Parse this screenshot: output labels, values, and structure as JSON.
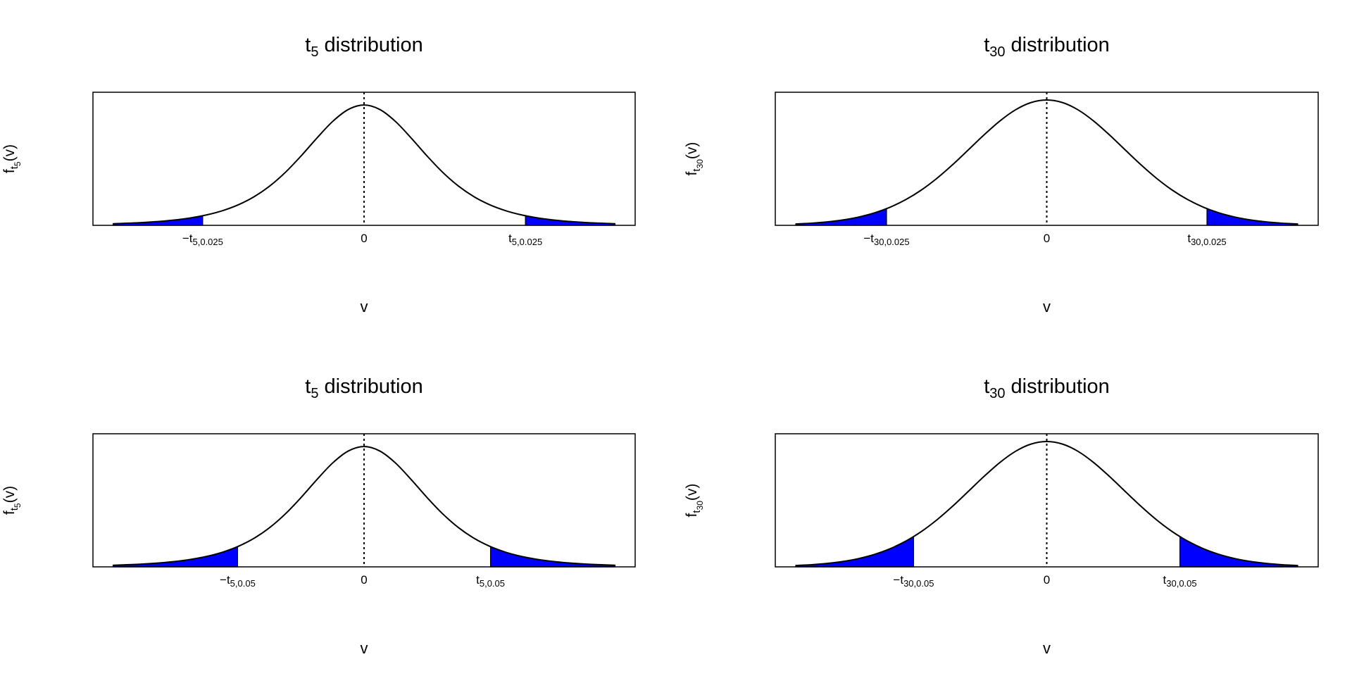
{
  "chart_data": [
    {
      "type": "line",
      "title": [
        "t",
        "5",
        " distribution"
      ],
      "x_label": "v",
      "y_label": [
        "f",
        "t",
        "5",
        "(v)"
      ],
      "x": [
        -4,
        -3.75,
        -3.5,
        -3.25,
        -3,
        -2.75,
        -2.5,
        -2.25,
        -2,
        -1.75,
        -1.5,
        -1.25,
        -1,
        -0.75,
        -0.5,
        -0.25,
        0,
        0.25,
        0.5,
        0.75,
        1,
        1.25,
        1.5,
        1.75,
        2,
        2.25,
        2.5,
        2.75,
        3,
        3.25,
        3.5,
        3.75,
        4
      ],
      "values": [
        0.0051,
        0.0069,
        0.0092,
        0.0126,
        0.0173,
        0.0239,
        0.0333,
        0.0466,
        0.0651,
        0.0905,
        0.1245,
        0.1679,
        0.2197,
        0.2757,
        0.3279,
        0.3657,
        0.3796,
        0.3657,
        0.3279,
        0.2757,
        0.2197,
        0.1679,
        0.1245,
        0.0905,
        0.0651,
        0.0466,
        0.0333,
        0.0239,
        0.0173,
        0.0126,
        0.0092,
        0.0069,
        0.0051
      ],
      "color": "#000000",
      "xlim": [
        -4.32,
        4.32
      ],
      "ylim": [
        0,
        0.42
      ],
      "xticks": [
        {
          "value": -2.571,
          "label": "−t",
          "sub": "5,0.025"
        },
        0,
        {
          "value": 2.571,
          "label": "t",
          "sub": "5,0.025"
        }
      ],
      "vline": 0,
      "tails": {
        "lower": -2.571,
        "upper": 2.571,
        "color": "#0000ff"
      }
    },
    {
      "type": "line",
      "title": [
        "t",
        "30",
        " distribution"
      ],
      "x_label": "v",
      "y_label": [
        "f",
        "t",
        "30",
        "(v)"
      ],
      "x": [
        -3.2,
        -3,
        -2.8,
        -2.6,
        -2.4,
        -2.2,
        -2,
        -1.8,
        -1.6,
        -1.4,
        -1.2,
        -1,
        -0.8,
        -0.6,
        -0.4,
        -0.2,
        0,
        0.2,
        0.4,
        0.6,
        0.8,
        1,
        1.2,
        1.4,
        1.6,
        1.8,
        2,
        2.2,
        2.4,
        2.6,
        2.8,
        3,
        3.2
      ],
      "values": [
        0.0042,
        0.0068,
        0.0108,
        0.0169,
        0.026,
        0.0389,
        0.0569,
        0.0807,
        0.1111,
        0.1483,
        0.1913,
        0.238,
        0.2852,
        0.3288,
        0.3643,
        0.3875,
        0.3956,
        0.3875,
        0.3643,
        0.3288,
        0.2852,
        0.238,
        0.1913,
        0.1483,
        0.1111,
        0.0807,
        0.0569,
        0.0389,
        0.026,
        0.0169,
        0.0108,
        0.0068,
        0.0042
      ],
      "color": "#000000",
      "xlim": [
        -3.46,
        3.46
      ],
      "ylim": [
        0,
        0.42
      ],
      "xticks": [
        {
          "value": -2.042,
          "label": "−t",
          "sub": "30,0.025"
        },
        0,
        {
          "value": 2.042,
          "label": "t",
          "sub": "30,0.025"
        }
      ],
      "vline": 0,
      "tails": {
        "lower": -2.042,
        "upper": 2.042,
        "color": "#0000ff"
      }
    },
    {
      "type": "line",
      "title": [
        "t",
        "5",
        " distribution"
      ],
      "x_label": "v",
      "y_label": [
        "f",
        "t",
        "5",
        "(v)"
      ],
      "x": [
        -4,
        -3.75,
        -3.5,
        -3.25,
        -3,
        -2.75,
        -2.5,
        -2.25,
        -2,
        -1.75,
        -1.5,
        -1.25,
        -1,
        -0.75,
        -0.5,
        -0.25,
        0,
        0.25,
        0.5,
        0.75,
        1,
        1.25,
        1.5,
        1.75,
        2,
        2.25,
        2.5,
        2.75,
        3,
        3.25,
        3.5,
        3.75,
        4
      ],
      "values": [
        0.0051,
        0.0069,
        0.0092,
        0.0126,
        0.0173,
        0.0239,
        0.0333,
        0.0466,
        0.0651,
        0.0905,
        0.1245,
        0.1679,
        0.2197,
        0.2757,
        0.3279,
        0.3657,
        0.3796,
        0.3657,
        0.3279,
        0.2757,
        0.2197,
        0.1679,
        0.1245,
        0.0905,
        0.0651,
        0.0466,
        0.0333,
        0.0239,
        0.0173,
        0.0126,
        0.0092,
        0.0069,
        0.0051
      ],
      "color": "#000000",
      "xlim": [
        -4.32,
        4.32
      ],
      "ylim": [
        0,
        0.42
      ],
      "xticks": [
        {
          "value": -2.015,
          "label": "−t",
          "sub": "5,0.05"
        },
        0,
        {
          "value": 2.015,
          "label": "t",
          "sub": "5,0.05"
        }
      ],
      "vline": 0,
      "tails": {
        "lower": -2.015,
        "upper": 2.015,
        "color": "#0000ff"
      }
    },
    {
      "type": "line",
      "title": [
        "t",
        "30",
        " distribution"
      ],
      "x_label": "v",
      "y_label": [
        "f",
        "t",
        "30",
        "(v)"
      ],
      "x": [
        -3.2,
        -3,
        -2.8,
        -2.6,
        -2.4,
        -2.2,
        -2,
        -1.8,
        -1.6,
        -1.4,
        -1.2,
        -1,
        -0.8,
        -0.6,
        -0.4,
        -0.2,
        0,
        0.2,
        0.4,
        0.6,
        0.8,
        1,
        1.2,
        1.4,
        1.6,
        1.8,
        2,
        2.2,
        2.4,
        2.6,
        2.8,
        3,
        3.2
      ],
      "values": [
        0.0042,
        0.0068,
        0.0108,
        0.0169,
        0.026,
        0.0389,
        0.0569,
        0.0807,
        0.1111,
        0.1483,
        0.1913,
        0.238,
        0.2852,
        0.3288,
        0.3643,
        0.3875,
        0.3956,
        0.3875,
        0.3643,
        0.3288,
        0.2852,
        0.238,
        0.1913,
        0.1483,
        0.1111,
        0.0807,
        0.0569,
        0.0389,
        0.026,
        0.0169,
        0.0108,
        0.0068,
        0.0042
      ],
      "color": "#000000",
      "xlim": [
        -3.46,
        3.46
      ],
      "ylim": [
        0,
        0.42
      ],
      "xticks": [
        {
          "value": -1.697,
          "label": "−t",
          "sub": "30,0.05"
        },
        0,
        {
          "value": 1.697,
          "label": "t",
          "sub": "30,0.05"
        }
      ],
      "vline": 0,
      "tails": {
        "lower": -1.697,
        "upper": 1.697,
        "color": "#0000ff"
      }
    }
  ]
}
